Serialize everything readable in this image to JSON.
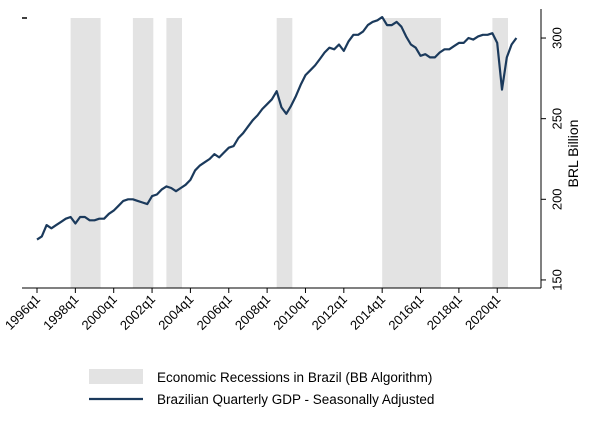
{
  "chart_data": {
    "type": "line",
    "title": "",
    "xlabel": "",
    "ylabel": "BRL Billion",
    "x_ticks": [
      "1996q1",
      "1998q1",
      "2000q1",
      "2002q1",
      "2004q1",
      "2006q1",
      "2008q1",
      "2010q1",
      "2012q1",
      "2014q1",
      "2016q1",
      "2018q1",
      "2020q1"
    ],
    "y_ticks": [
      150,
      200,
      250,
      300
    ],
    "ylim": [
      145,
      318
    ],
    "xlim": [
      "1996q1",
      "2021q3"
    ],
    "grid": false,
    "y_axis_side": "right",
    "legend_position": "bottom",
    "recessions": {
      "name": "Economic Recessions in Brazil (BB Algorithm)",
      "color": "#e3e3e3",
      "periods": [
        [
          "1997q4",
          "1999q1"
        ],
        [
          "2001q1",
          "2001q4"
        ],
        [
          "2002q4",
          "2003q2"
        ],
        [
          "2008q3",
          "2009q1"
        ],
        [
          "2014q1",
          "2016q4"
        ],
        [
          "2019q4",
          "2020q2"
        ]
      ]
    },
    "series": [
      {
        "name": "Brazilian Quarterly GDP - Seasonally Adjusted",
        "color": "#1b3a5c",
        "x": [
          "1996q1",
          "1996q2",
          "1996q3",
          "1996q4",
          "1997q1",
          "1997q2",
          "1997q3",
          "1997q4",
          "1998q1",
          "1998q2",
          "1998q3",
          "1998q4",
          "1999q1",
          "1999q2",
          "1999q3",
          "1999q4",
          "2000q1",
          "2000q2",
          "2000q3",
          "2000q4",
          "2001q1",
          "2001q2",
          "2001q3",
          "2001q4",
          "2002q1",
          "2002q2",
          "2002q3",
          "2002q4",
          "2003q1",
          "2003q2",
          "2003q3",
          "2003q4",
          "2004q1",
          "2004q2",
          "2004q3",
          "2004q4",
          "2005q1",
          "2005q2",
          "2005q3",
          "2005q4",
          "2006q1",
          "2006q2",
          "2006q3",
          "2006q4",
          "2007q1",
          "2007q2",
          "2007q3",
          "2007q4",
          "2008q1",
          "2008q2",
          "2008q3",
          "2008q4",
          "2009q1",
          "2009q2",
          "2009q3",
          "2009q4",
          "2010q1",
          "2010q2",
          "2010q3",
          "2010q4",
          "2011q1",
          "2011q2",
          "2011q3",
          "2011q4",
          "2012q1",
          "2012q2",
          "2012q3",
          "2012q4",
          "2013q1",
          "2013q2",
          "2013q3",
          "2013q4",
          "2014q1",
          "2014q2",
          "2014q3",
          "2014q4",
          "2015q1",
          "2015q2",
          "2015q3",
          "2015q4",
          "2016q1",
          "2016q2",
          "2016q3",
          "2016q4",
          "2017q1",
          "2017q2",
          "2017q3",
          "2017q4",
          "2018q1",
          "2018q2",
          "2018q3",
          "2018q4",
          "2019q1",
          "2019q2",
          "2019q3",
          "2019q4",
          "2020q1",
          "2020q2",
          "2020q3",
          "2020q4",
          "2021q1"
        ],
        "values": [
          175,
          177,
          184,
          182,
          184,
          186,
          188,
          189,
          185,
          189,
          189,
          187,
          187,
          188,
          188,
          191,
          193,
          196,
          199,
          200,
          200,
          199,
          198,
          197,
          202,
          203,
          206,
          208,
          207,
          205,
          207,
          209,
          212,
          218,
          221,
          223,
          225,
          228,
          226,
          229,
          232,
          233,
          238,
          241,
          245,
          249,
          252,
          256,
          259,
          262,
          267,
          257,
          253,
          258,
          264,
          271,
          277,
          280,
          283,
          287,
          291,
          294,
          293,
          296,
          292,
          298,
          302,
          302,
          304,
          308,
          310,
          311,
          313,
          308,
          308,
          310,
          307,
          301,
          296,
          294,
          289,
          290,
          288,
          288,
          291,
          293,
          293,
          295,
          297,
          297,
          300,
          299,
          301,
          302,
          302,
          303,
          297,
          268,
          288,
          296,
          300
        ]
      }
    ]
  }
}
